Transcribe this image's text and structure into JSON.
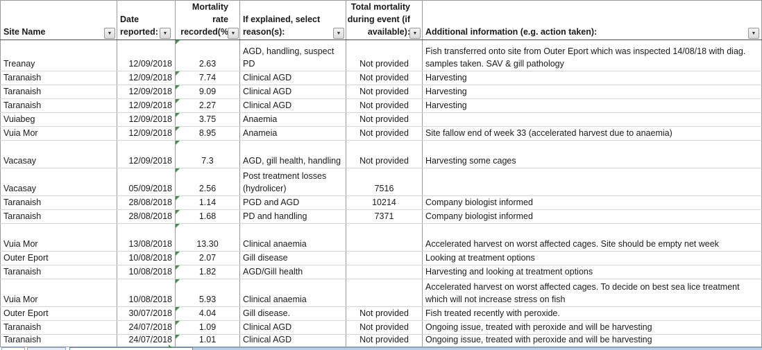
{
  "table": {
    "columns": [
      {
        "label": "Site Name"
      },
      {
        "label": "Date\nreported:"
      },
      {
        "label": "Mortality rate\nrecorded(%"
      },
      {
        "label": "If explained, select\nreason(s):"
      },
      {
        "label": "Total mortality\nduring event (if\navailable):"
      },
      {
        "label": "Additional information (e.g. action taken):"
      }
    ],
    "rows": [
      {
        "site": "Treanay",
        "date": "12/09/2018",
        "rate": "2.63",
        "reason": "AGD, handling, suspect PD",
        "total": "Not provided",
        "info": "Fish transferred onto site from Outer Eport which was inspected 14/08/18 with diag. samples taken. SAV & gill pathology"
      },
      {
        "site": "Taranaish",
        "date": "12/09/2018",
        "rate": "7.74",
        "reason": "Clinical AGD",
        "total": "Not provided",
        "info": "Harvesting"
      },
      {
        "site": "Taranaish",
        "date": "12/09/2018",
        "rate": "9.09",
        "reason": "Clinical AGD",
        "total": "Not provided",
        "info": "Harvesting"
      },
      {
        "site": "Taranaish",
        "date": "12/09/2018",
        "rate": "2.27",
        "reason": "Clinical AGD",
        "total": "Not provided",
        "info": "Harvesting"
      },
      {
        "site": "Vuiabeg",
        "date": "12/09/2018",
        "rate": "3.75",
        "reason": "Anaemia",
        "total": "Not provided",
        "info": ""
      },
      {
        "site": "Vuia Mor",
        "date": "12/09/2018",
        "rate": "8.95",
        "reason": "Anameia",
        "total": "Not provided",
        "info": "Site fallow end of week 33 (accelerated harvest due to anaemia)"
      },
      {
        "site": "Vacasay",
        "date": "12/09/2018",
        "rate": "7.3",
        "reason": "AGD, gill health, handling",
        "total": "Not provided",
        "info": "Harvesting some cages"
      },
      {
        "site": "Vacasay",
        "date": "05/09/2018",
        "rate": "2.56",
        "reason": "Post treatment losses (hydrolicer)",
        "total": "7516",
        "info": ""
      },
      {
        "site": "Taranaish",
        "date": "28/08/2018",
        "rate": "1.14",
        "reason": "PGD and AGD",
        "total": "10214",
        "info": "Company biologist informed"
      },
      {
        "site": "Taranaish",
        "date": "28/08/2018",
        "rate": "1.68",
        "reason": "PD and handling",
        "total": "7371",
        "info": "Company biologist informed"
      },
      {
        "site": "Vuia Mor",
        "date": "13/08/2018",
        "rate": "13.30",
        "reason": "Clinical anaemia",
        "total": "",
        "info": "Accelerated harvest on worst affected cages. Site should be empty net week"
      },
      {
        "site": "Outer Eport",
        "date": "10/08/2018",
        "rate": "2.07",
        "reason": "Gill disease",
        "total": "",
        "info": "Looking at treatment options"
      },
      {
        "site": "Taranaish",
        "date": "10/08/2018",
        "rate": "1.82",
        "reason": "AGD/Gill health",
        "total": "",
        "info": "Harvesting and looking at treatment options"
      },
      {
        "site": "Vuia Mor",
        "date": "10/08/2018",
        "rate": "5.93",
        "reason": "Clinical anaemia",
        "total": "",
        "info": "Accelerated harvest on worst affected cages. To decide on best sea lice treatment which will not increase stress on fish"
      },
      {
        "site": "Outer Eport",
        "date": "30/07/2018",
        "rate": "4.04",
        "reason": "Gill disease.",
        "total": "Not provided",
        "info": "Fish treated recently with peroxide."
      },
      {
        "site": "Taranaish",
        "date": "24/07/2018",
        "rate": "1.09",
        "reason": "Clinical AGD",
        "total": "Not provided",
        "info": "Ongoing issue, treated with peroxide and will be harvesting"
      },
      {
        "site": "Taranaish",
        "date": "24/07/2018",
        "rate": "1.01",
        "reason": "Clinical AGD",
        "total": "Not provided",
        "info": "Ongoing issue, treated with peroxide and will be harvesting"
      }
    ]
  },
  "icons": {
    "filter_dropdown": "▼",
    "error_indicator": "green-triangle-top-left"
  },
  "colors": {
    "error_indicator_green": "#3a9648",
    "gridline_vertical": "#9b9b9b",
    "gridline_horizontal": "#d4d4d4",
    "tab_strip_blue": "#b9cfe8"
  }
}
